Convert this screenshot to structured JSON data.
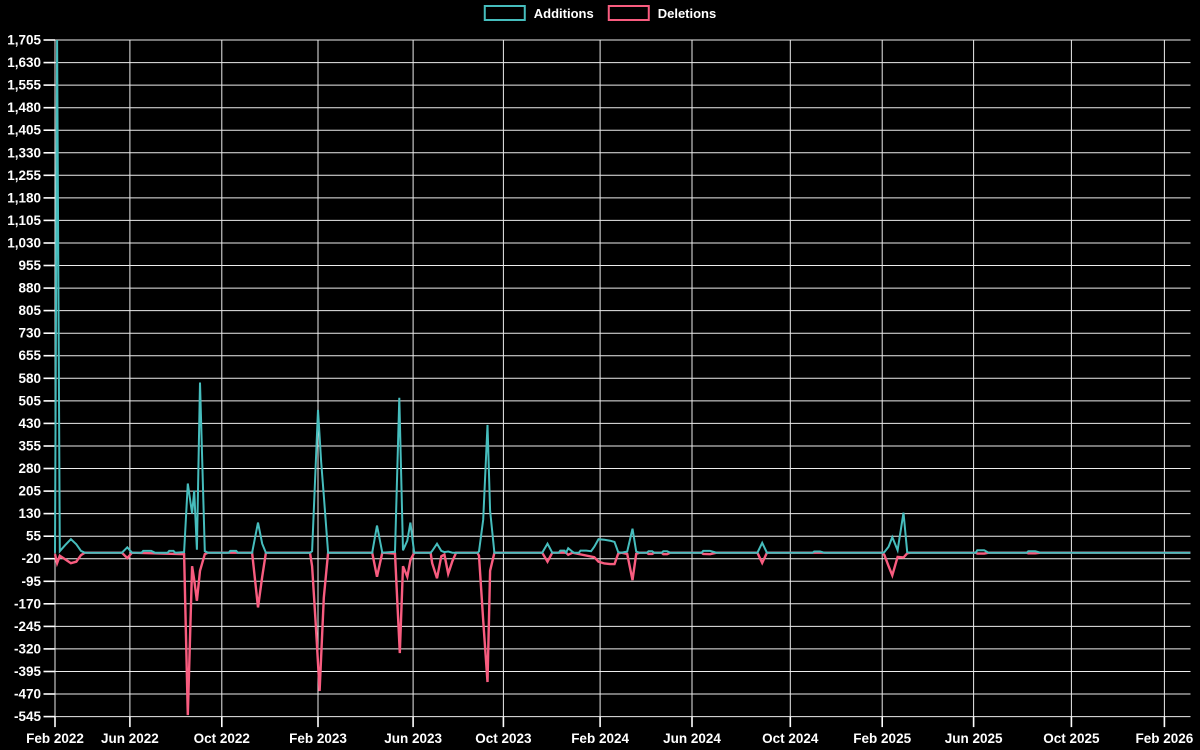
{
  "chart_data": {
    "type": "line",
    "title": "",
    "legend_position": "top-center",
    "grid": true,
    "colors": {
      "background": "#000000",
      "grid": "#ececec",
      "text": "#ffffff",
      "additions": "#46bdbd",
      "deletions": "#f85c7f"
    },
    "legend": [
      {
        "label": "Additions",
        "color": "#46bdbd"
      },
      {
        "label": "Deletions",
        "color": "#f85c7f"
      }
    ],
    "y_axis": {
      "min": -545,
      "max": 1705,
      "step": 75,
      "tick_values": [
        1705,
        1630,
        1555,
        1480,
        1405,
        1330,
        1255,
        1180,
        1105,
        1030,
        955,
        880,
        805,
        730,
        655,
        580,
        505,
        430,
        355,
        280,
        205,
        130,
        55,
        -20,
        -95,
        -170,
        -245,
        -320,
        -395,
        -470,
        -545
      ]
    },
    "x_axis": {
      "unit": "weeks since Feb 2022",
      "domain_weeks": [
        0,
        213.7
      ],
      "ticks": [
        {
          "label": "Feb 2022",
          "week": 0
        },
        {
          "label": "Jun 2022",
          "week": 14.1
        },
        {
          "label": "Oct 2022",
          "week": 31.4
        },
        {
          "label": "Feb 2023",
          "week": 49.5
        },
        {
          "label": "Jun 2023",
          "week": 67.4
        },
        {
          "label": "Oct 2023",
          "week": 84.4
        },
        {
          "label": "Feb 2024",
          "week": 102.6
        },
        {
          "label": "Jun 2024",
          "week": 119.9
        },
        {
          "label": "Oct 2024",
          "week": 138.4
        },
        {
          "label": "Feb 2025",
          "week": 155.7
        },
        {
          "label": "Jun 2025",
          "week": 172.9
        },
        {
          "label": "Oct 2025",
          "week": 191.3
        },
        {
          "label": "Feb 2026",
          "week": 208.8
        }
      ]
    },
    "series": [
      {
        "name": "Additions",
        "color": "#46bdbd",
        "points": [
          [
            0,
            0
          ],
          [
            0.4,
            1705
          ],
          [
            0.9,
            5
          ],
          [
            1.9,
            25
          ],
          [
            3.0,
            45
          ],
          [
            4.0,
            28
          ],
          [
            4.9,
            6
          ],
          [
            5.6,
            0
          ],
          [
            12.6,
            0
          ],
          [
            13.6,
            18
          ],
          [
            14.5,
            0
          ],
          [
            16.3,
            0
          ],
          [
            16.6,
            6
          ],
          [
            18.1,
            6
          ],
          [
            18.8,
            0
          ],
          [
            21.2,
            0
          ],
          [
            21.5,
            6
          ],
          [
            22.3,
            6
          ],
          [
            22.6,
            0
          ],
          [
            24.3,
            2
          ],
          [
            25.0,
            230
          ],
          [
            25.8,
            130
          ],
          [
            26.2,
            207
          ],
          [
            26.7,
            10
          ],
          [
            27.3,
            566
          ],
          [
            28.2,
            5
          ],
          [
            28.8,
            0
          ],
          [
            32.7,
            0
          ],
          [
            33.0,
            6
          ],
          [
            34.1,
            6
          ],
          [
            34.4,
            0
          ],
          [
            37.1,
            0
          ],
          [
            38.2,
            100
          ],
          [
            39.0,
            30
          ],
          [
            39.7,
            0
          ],
          [
            48.0,
            0
          ],
          [
            48.4,
            5
          ],
          [
            49.5,
            475
          ],
          [
            50.1,
            300
          ],
          [
            50.6,
            190
          ],
          [
            51.4,
            0
          ],
          [
            59.7,
            0
          ],
          [
            60.6,
            90
          ],
          [
            61.6,
            0
          ],
          [
            64.0,
            3
          ],
          [
            64.8,
            515
          ],
          [
            65.5,
            8
          ],
          [
            66.3,
            40
          ],
          [
            66.9,
            100
          ],
          [
            67.6,
            0
          ],
          [
            70.7,
            0
          ],
          [
            71.0,
            6
          ],
          [
            71.9,
            30
          ],
          [
            72.7,
            6
          ],
          [
            73.3,
            2
          ],
          [
            74.0,
            4
          ],
          [
            74.8,
            0
          ],
          [
            79.5,
            0
          ],
          [
            79.8,
            4
          ],
          [
            80.6,
            110
          ],
          [
            81.4,
            425
          ],
          [
            81.9,
            140
          ],
          [
            82.7,
            0
          ],
          [
            91.7,
            0
          ],
          [
            92.7,
            30
          ],
          [
            93.6,
            0
          ],
          [
            94.8,
            0
          ],
          [
            95.1,
            7
          ],
          [
            95.9,
            7
          ],
          [
            96.2,
            0
          ],
          [
            96.6,
            15
          ],
          [
            97.4,
            3
          ],
          [
            97.7,
            0
          ],
          [
            98.6,
            0
          ],
          [
            98.9,
            7
          ],
          [
            100.0,
            7
          ],
          [
            100.9,
            5
          ],
          [
            101.5,
            20
          ],
          [
            102.3,
            45
          ],
          [
            103.4,
            43
          ],
          [
            104.5,
            40
          ],
          [
            105.3,
            36
          ],
          [
            106.0,
            2
          ],
          [
            106.6,
            0
          ],
          [
            107.7,
            4
          ],
          [
            108.7,
            80
          ],
          [
            109.4,
            4
          ],
          [
            110.0,
            0
          ],
          [
            111.4,
            0
          ],
          [
            111.7,
            5
          ],
          [
            112.4,
            5
          ],
          [
            112.8,
            0
          ],
          [
            114.2,
            0
          ],
          [
            114.5,
            5
          ],
          [
            115.2,
            5
          ],
          [
            115.8,
            0
          ],
          [
            121.7,
            0
          ],
          [
            122.0,
            6
          ],
          [
            123.3,
            6
          ],
          [
            124.5,
            0
          ],
          [
            132.2,
            0
          ],
          [
            133.1,
            33
          ],
          [
            134.0,
            0
          ],
          [
            142.6,
            0
          ],
          [
            142.9,
            4
          ],
          [
            144.0,
            4
          ],
          [
            144.8,
            0
          ],
          [
            155.8,
            0
          ],
          [
            156.1,
            2
          ],
          [
            156.9,
            20
          ],
          [
            157.6,
            52
          ],
          [
            158.6,
            8
          ],
          [
            159.7,
            133
          ],
          [
            160.4,
            2
          ],
          [
            161.0,
            0
          ],
          [
            173.3,
            0
          ],
          [
            173.6,
            8
          ],
          [
            174.9,
            8
          ],
          [
            175.7,
            0
          ],
          [
            182.9,
            0
          ],
          [
            183.2,
            5
          ],
          [
            184.5,
            5
          ],
          [
            185.5,
            0
          ],
          [
            213.7,
            0
          ]
        ]
      },
      {
        "name": "Deletions",
        "color": "#f85c7f",
        "points": [
          [
            0,
            -5
          ],
          [
            0.4,
            -35
          ],
          [
            0.9,
            -10
          ],
          [
            1.9,
            -22
          ],
          [
            3.0,
            -35
          ],
          [
            4.0,
            -30
          ],
          [
            4.9,
            -8
          ],
          [
            5.6,
            0
          ],
          [
            12.6,
            0
          ],
          [
            13.6,
            -18
          ],
          [
            14.5,
            0
          ],
          [
            24.3,
            -5
          ],
          [
            25.0,
            -540
          ],
          [
            25.8,
            -45
          ],
          [
            26.2,
            -90
          ],
          [
            26.7,
            -160
          ],
          [
            27.3,
            -60
          ],
          [
            28.2,
            -5
          ],
          [
            28.8,
            0
          ],
          [
            37.1,
            0
          ],
          [
            38.2,
            -182
          ],
          [
            39.0,
            -80
          ],
          [
            39.7,
            0
          ],
          [
            48.0,
            0
          ],
          [
            48.4,
            -45
          ],
          [
            49.1,
            -246
          ],
          [
            49.8,
            -460
          ],
          [
            50.6,
            -150
          ],
          [
            51.4,
            0
          ],
          [
            59.7,
            0
          ],
          [
            60.6,
            -80
          ],
          [
            61.6,
            0
          ],
          [
            64.0,
            -3
          ],
          [
            64.9,
            -334
          ],
          [
            65.5,
            -45
          ],
          [
            66.3,
            -80
          ],
          [
            66.9,
            -25
          ],
          [
            67.6,
            0
          ],
          [
            70.7,
            0
          ],
          [
            71.0,
            -35
          ],
          [
            71.9,
            -85
          ],
          [
            72.7,
            -12
          ],
          [
            73.3,
            -6
          ],
          [
            74.0,
            -70
          ],
          [
            74.8,
            -28
          ],
          [
            75.5,
            0
          ],
          [
            79.5,
            0
          ],
          [
            79.8,
            -10
          ],
          [
            80.6,
            -225
          ],
          [
            81.4,
            -430
          ],
          [
            81.9,
            -60
          ],
          [
            82.7,
            0
          ],
          [
            91.7,
            0
          ],
          [
            92.7,
            -30
          ],
          [
            93.6,
            0
          ],
          [
            96.2,
            0
          ],
          [
            96.6,
            -7
          ],
          [
            97.4,
            0
          ],
          [
            101.5,
            -15
          ],
          [
            102.3,
            -30
          ],
          [
            103.4,
            -36
          ],
          [
            104.5,
            -38
          ],
          [
            105.3,
            -38
          ],
          [
            106.0,
            -3
          ],
          [
            106.6,
            0
          ],
          [
            107.7,
            -4
          ],
          [
            108.7,
            -91
          ],
          [
            109.4,
            -4
          ],
          [
            110.0,
            0
          ],
          [
            111.4,
            0
          ],
          [
            111.7,
            -4
          ],
          [
            112.4,
            -4
          ],
          [
            112.8,
            0
          ],
          [
            114.2,
            0
          ],
          [
            114.5,
            -5
          ],
          [
            115.2,
            -5
          ],
          [
            115.8,
            0
          ],
          [
            121.7,
            0
          ],
          [
            122.0,
            -4
          ],
          [
            123.3,
            -5
          ],
          [
            124.5,
            0
          ],
          [
            132.2,
            0
          ],
          [
            133.1,
            -34
          ],
          [
            134.0,
            0
          ],
          [
            155.8,
            0
          ],
          [
            156.1,
            -8
          ],
          [
            156.9,
            -45
          ],
          [
            157.6,
            -75
          ],
          [
            158.6,
            -14
          ],
          [
            159.7,
            -16
          ],
          [
            160.4,
            -2
          ],
          [
            161.0,
            0
          ],
          [
            173.3,
            0
          ],
          [
            173.6,
            -3
          ],
          [
            174.9,
            -3
          ],
          [
            175.7,
            0
          ],
          [
            182.9,
            0
          ],
          [
            183.2,
            -2
          ],
          [
            184.5,
            -2
          ],
          [
            185.5,
            0
          ],
          [
            213.7,
            0
          ]
        ]
      }
    ]
  }
}
